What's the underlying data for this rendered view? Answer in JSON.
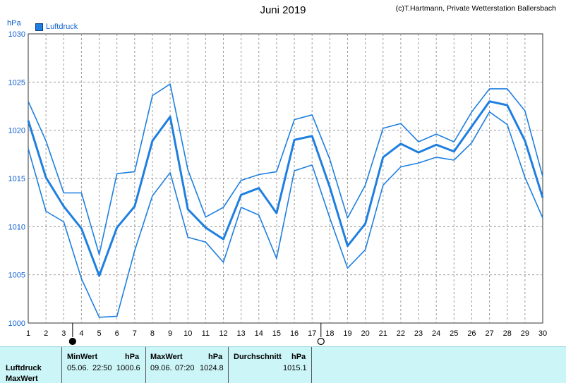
{
  "header": {
    "title": "Juni 2019",
    "credit": "(c)T.Hartmann, Private Wetterstation Ballersbach",
    "unit": "hPa",
    "legend_label": "Luftdruck"
  },
  "colors": {
    "line": "#1e7fe0",
    "grid": "#9a9a9a",
    "axis_text": "#1060d0",
    "footer_bg": "#ccf5f7"
  },
  "chart_data": {
    "type": "line",
    "title": "Juni 2019",
    "ylabel": "hPa",
    "xlim": [
      1,
      30
    ],
    "ylim": [
      1000,
      1030
    ],
    "x_ticks": [
      1,
      2,
      3,
      4,
      5,
      6,
      7,
      8,
      9,
      10,
      11,
      12,
      13,
      14,
      15,
      16,
      17,
      18,
      19,
      20,
      21,
      22,
      23,
      24,
      25,
      26,
      27,
      28,
      29,
      30
    ],
    "y_ticks": [
      1000,
      1005,
      1010,
      1015,
      1020,
      1025,
      1030
    ],
    "grid": true,
    "legend": "top-left",
    "x": [
      1,
      2,
      3,
      4,
      5,
      6,
      7,
      8,
      9,
      10,
      11,
      12,
      13,
      14,
      15,
      16,
      17,
      18,
      19,
      20,
      21,
      22,
      23,
      24,
      25,
      26,
      27,
      28,
      29,
      30
    ],
    "series": [
      {
        "name": "Luftdruck",
        "values": [
          1021.0,
          1015.1,
          1012.1,
          1009.8,
          1004.9,
          1009.9,
          1012.1,
          1018.9,
          1021.4,
          1011.8,
          1009.9,
          1008.7,
          1013.3,
          1014.0,
          1011.4,
          1019.0,
          1019.4,
          1014.1,
          1008.0,
          1010.3,
          1017.2,
          1018.6,
          1017.7,
          1018.5,
          1017.8,
          1020.4,
          1023.0,
          1022.6,
          1018.9,
          1013.0
        ],
        "emphasis": "bold"
      },
      {
        "name": "",
        "values": [
          1023.0,
          1018.9,
          1013.5,
          1013.5,
          1007.1,
          1015.5,
          1015.7,
          1023.6,
          1024.8,
          1015.9,
          1011.0,
          1012.0,
          1014.8,
          1015.4,
          1015.7,
          1021.1,
          1021.6,
          1017.0,
          1010.9,
          1014.3,
          1020.2,
          1020.7,
          1018.8,
          1019.6,
          1018.8,
          1021.9,
          1024.3,
          1024.3,
          1022.0,
          1015.2
        ]
      },
      {
        "name": "",
        "values": [
          1018.1,
          1011.6,
          1010.5,
          1004.6,
          1000.6,
          1000.7,
          1007.5,
          1013.2,
          1015.6,
          1008.9,
          1008.4,
          1006.3,
          1012.0,
          1011.2,
          1006.7,
          1015.8,
          1016.4,
          1010.9,
          1005.7,
          1007.6,
          1014.3,
          1016.2,
          1016.6,
          1017.2,
          1016.9,
          1018.7,
          1021.9,
          1020.6,
          1015.1,
          1010.9
        ]
      }
    ],
    "markers": [
      {
        "type": "new-moon",
        "x": 3.5
      },
      {
        "type": "full-moon",
        "x": 17.5
      }
    ]
  },
  "footer": {
    "row_labels": [
      "Luftdruck",
      "MaxWert"
    ],
    "min": {
      "label": "MinWert",
      "unit": "hPa",
      "date": "05.06.",
      "time": "22:50",
      "value": "1000.6"
    },
    "max": {
      "label": "MaxWert",
      "unit": "hPa",
      "date": "09.06.",
      "time": "07:20",
      "value": "1024.8"
    },
    "avg": {
      "label": "Durchschnitt",
      "unit": "hPa",
      "value": "1015.1"
    }
  }
}
